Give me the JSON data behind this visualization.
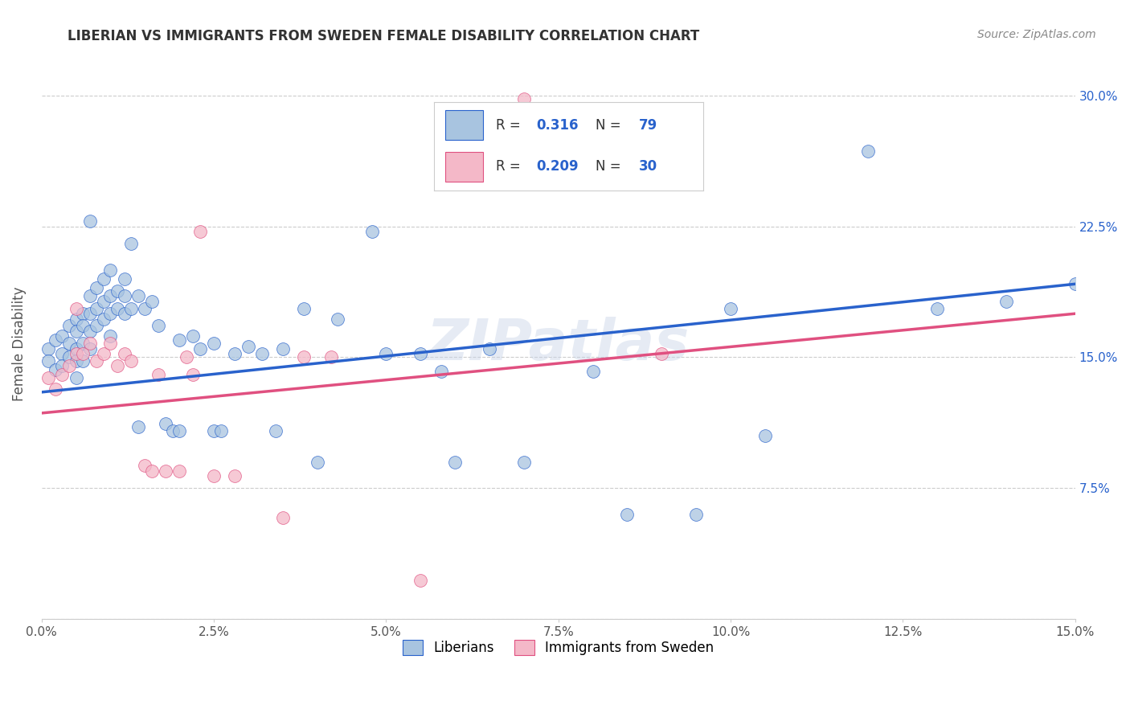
{
  "title": "LIBERIAN VS IMMIGRANTS FROM SWEDEN FEMALE DISABILITY CORRELATION CHART",
  "source": "Source: ZipAtlas.com",
  "ylabel": "Female Disability",
  "ytick_labels": [
    "",
    "7.5%",
    "15.0%",
    "22.5%",
    "30.0%"
  ],
  "ytick_values": [
    0.0,
    0.075,
    0.15,
    0.225,
    0.3
  ],
  "xmin": 0.0,
  "xmax": 0.15,
  "ymin": 0.0,
  "ymax": 0.315,
  "r_blue": 0.316,
  "n_blue": 79,
  "r_pink": 0.209,
  "n_pink": 30,
  "blue_color": "#a8c4e0",
  "pink_color": "#f4b8c8",
  "blue_line_color": "#2962cc",
  "pink_line_color": "#e05080",
  "title_color": "#333333",
  "source_color": "#888888",
  "watermark": "ZIPatlas",
  "legend_label_blue": "Liberians",
  "legend_label_pink": "Immigrants from Sweden",
  "blue_line_y0": 0.13,
  "blue_line_y1": 0.192,
  "pink_line_y0": 0.118,
  "pink_line_y1": 0.175,
  "blue_points": [
    [
      0.001,
      0.155
    ],
    [
      0.001,
      0.148
    ],
    [
      0.002,
      0.16
    ],
    [
      0.002,
      0.143
    ],
    [
      0.003,
      0.162
    ],
    [
      0.003,
      0.152
    ],
    [
      0.003,
      0.145
    ],
    [
      0.004,
      0.168
    ],
    [
      0.004,
      0.158
    ],
    [
      0.004,
      0.15
    ],
    [
      0.005,
      0.172
    ],
    [
      0.005,
      0.165
    ],
    [
      0.005,
      0.155
    ],
    [
      0.005,
      0.148
    ],
    [
      0.005,
      0.138
    ],
    [
      0.006,
      0.175
    ],
    [
      0.006,
      0.168
    ],
    [
      0.006,
      0.158
    ],
    [
      0.006,
      0.148
    ],
    [
      0.007,
      0.228
    ],
    [
      0.007,
      0.185
    ],
    [
      0.007,
      0.175
    ],
    [
      0.007,
      0.165
    ],
    [
      0.007,
      0.155
    ],
    [
      0.008,
      0.19
    ],
    [
      0.008,
      0.178
    ],
    [
      0.008,
      0.168
    ],
    [
      0.009,
      0.195
    ],
    [
      0.009,
      0.182
    ],
    [
      0.009,
      0.172
    ],
    [
      0.01,
      0.2
    ],
    [
      0.01,
      0.185
    ],
    [
      0.01,
      0.175
    ],
    [
      0.01,
      0.162
    ],
    [
      0.011,
      0.188
    ],
    [
      0.011,
      0.178
    ],
    [
      0.012,
      0.195
    ],
    [
      0.012,
      0.185
    ],
    [
      0.012,
      0.175
    ],
    [
      0.013,
      0.215
    ],
    [
      0.013,
      0.178
    ],
    [
      0.014,
      0.185
    ],
    [
      0.014,
      0.11
    ],
    [
      0.015,
      0.178
    ],
    [
      0.016,
      0.182
    ],
    [
      0.017,
      0.168
    ],
    [
      0.018,
      0.112
    ],
    [
      0.019,
      0.108
    ],
    [
      0.02,
      0.108
    ],
    [
      0.02,
      0.16
    ],
    [
      0.022,
      0.162
    ],
    [
      0.023,
      0.155
    ],
    [
      0.025,
      0.108
    ],
    [
      0.025,
      0.158
    ],
    [
      0.026,
      0.108
    ],
    [
      0.028,
      0.152
    ],
    [
      0.03,
      0.156
    ],
    [
      0.032,
      0.152
    ],
    [
      0.034,
      0.108
    ],
    [
      0.035,
      0.155
    ],
    [
      0.038,
      0.178
    ],
    [
      0.04,
      0.09
    ],
    [
      0.043,
      0.172
    ],
    [
      0.048,
      0.222
    ],
    [
      0.05,
      0.152
    ],
    [
      0.055,
      0.152
    ],
    [
      0.058,
      0.142
    ],
    [
      0.06,
      0.09
    ],
    [
      0.065,
      0.155
    ],
    [
      0.07,
      0.09
    ],
    [
      0.08,
      0.142
    ],
    [
      0.085,
      0.06
    ],
    [
      0.095,
      0.06
    ],
    [
      0.1,
      0.178
    ],
    [
      0.105,
      0.105
    ],
    [
      0.12,
      0.268
    ],
    [
      0.13,
      0.178
    ],
    [
      0.14,
      0.182
    ],
    [
      0.15,
      0.192
    ]
  ],
  "pink_points": [
    [
      0.001,
      0.138
    ],
    [
      0.002,
      0.132
    ],
    [
      0.003,
      0.14
    ],
    [
      0.004,
      0.145
    ],
    [
      0.005,
      0.178
    ],
    [
      0.005,
      0.152
    ],
    [
      0.006,
      0.152
    ],
    [
      0.007,
      0.158
    ],
    [
      0.008,
      0.148
    ],
    [
      0.009,
      0.152
    ],
    [
      0.01,
      0.158
    ],
    [
      0.011,
      0.145
    ],
    [
      0.012,
      0.152
    ],
    [
      0.013,
      0.148
    ],
    [
      0.015,
      0.088
    ],
    [
      0.016,
      0.085
    ],
    [
      0.017,
      0.14
    ],
    [
      0.018,
      0.085
    ],
    [
      0.02,
      0.085
    ],
    [
      0.021,
      0.15
    ],
    [
      0.022,
      0.14
    ],
    [
      0.023,
      0.222
    ],
    [
      0.025,
      0.082
    ],
    [
      0.028,
      0.082
    ],
    [
      0.035,
      0.058
    ],
    [
      0.038,
      0.15
    ],
    [
      0.042,
      0.15
    ],
    [
      0.055,
      0.022
    ],
    [
      0.07,
      0.298
    ],
    [
      0.09,
      0.152
    ]
  ]
}
